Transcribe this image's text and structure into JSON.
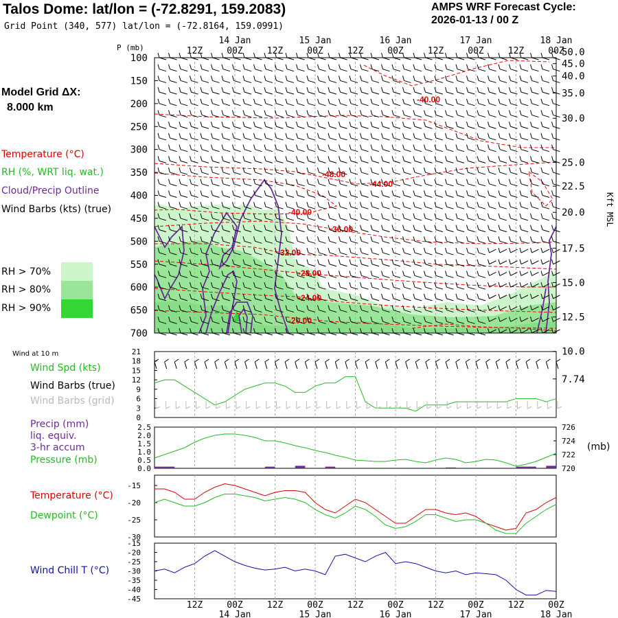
{
  "header": {
    "title": "Talos Dome:  lat/lon = (-72.8291, 159.2083)",
    "subtitle": "Grid Point (340, 577) lat/lon = (-72.8164, 159.0991)",
    "cycle_line1": "AMPS WRF Forecast Cycle:",
    "cycle_line2": "2026-01-13 / 00  Z",
    "grid_label1": "Model Grid ΔX:",
    "grid_label2": "8.000 km"
  },
  "time_axis": {
    "top_labels": [
      "12Z",
      "00Z",
      "12Z",
      "00Z",
      "12Z",
      "00Z",
      "12Z",
      "00Z",
      "12Z",
      "00Z"
    ],
    "date_labels": [
      "14 Jan",
      "15 Jan",
      "16 Jan",
      "17 Jan",
      "18 Jan"
    ]
  },
  "upper_panel": {
    "p_axis_label": "P (mb)",
    "kft_axis_label": "Kft MSL",
    "legend": {
      "temperature": "Temperature (°C)",
      "rh": "RH (%, WRT liq. wat.)",
      "cloud": "Cloud/Precip Outline",
      "wind": "Wind Barbs (kts) (true)",
      "rh70": "RH > 70%",
      "rh80": "RH > 80%",
      "rh90": "RH > 90%"
    },
    "colors": {
      "rh70": "#ccf5cc",
      "rh80": "#99e699",
      "rh90": "#33d633",
      "temp": "#ee0000",
      "cloud": "#6a2a9a"
    },
    "contour_labels": [
      "-40.00",
      "-48.00",
      "-44.00",
      "-40.00",
      "-36.00",
      "-32.00",
      "-28.00",
      "-24.00",
      "-20.00"
    ]
  },
  "wind_panel": {
    "title": "Wind at 10 m",
    "legend_spd": "Wind Spd (kts)",
    "legend_barbs_true": "Wind Barbs (true)",
    "legend_barbs_grid": "Wind Barbs (grid)"
  },
  "precip_panel": {
    "legend1": "Precip (mm)",
    "legend2": "liq. equiv.",
    "legend3": "3-hr accum",
    "legend4": "Pressure (mb)",
    "right_unit": "(mb)"
  },
  "temp_panel": {
    "legend_temp": "Temperature (°C)",
    "legend_dew": "Dewpoint (°C)"
  },
  "chill_panel": {
    "legend": "Wind Chill T (°C)"
  },
  "chart_data": [
    {
      "type": "heatmap",
      "name": "upper",
      "p_ticks": [
        100,
        150,
        200,
        250,
        300,
        350,
        400,
        450,
        500,
        550,
        600,
        650,
        700
      ],
      "kft_ticks": [
        "50.0",
        "45.0",
        "40.0",
        "35.0",
        "30.0",
        "25.0",
        "22.5",
        "20.0",
        "17.5",
        "15.0",
        "12.5",
        "10.0",
        "7.74"
      ],
      "kft_pressures": [
        87,
        113,
        140,
        177,
        232,
        328,
        380,
        437,
        515,
        590,
        665,
        740,
        800
      ]
    },
    {
      "type": "line",
      "name": "wind_speed",
      "x_hours": [
        0,
        3,
        6,
        9,
        12,
        15,
        18,
        21,
        24,
        27,
        30,
        33,
        36,
        39,
        42,
        45,
        48,
        51,
        54,
        57,
        60,
        63,
        66,
        69,
        72,
        75,
        78,
        81,
        84,
        87,
        90,
        93,
        96,
        99,
        102,
        105,
        108,
        111,
        114,
        117,
        120
      ],
      "y": [
        11,
        12,
        12,
        10,
        8,
        6,
        4,
        5,
        7,
        9,
        10,
        11,
        11,
        10,
        8,
        8,
        10,
        11,
        11,
        13,
        13,
        5,
        3,
        3,
        3,
        3,
        2,
        4,
        4,
        4,
        5,
        5,
        5,
        5,
        5,
        5,
        6,
        6,
        6,
        5,
        6
      ],
      "y_ticks": [
        21,
        18,
        15,
        12,
        9,
        6,
        3,
        0
      ],
      "ylim": [
        0,
        21
      ]
    },
    {
      "type": "line",
      "name": "pressure",
      "x_hours": [
        0,
        3,
        6,
        9,
        12,
        15,
        18,
        21,
        24,
        27,
        30,
        33,
        36,
        39,
        42,
        45,
        48,
        51,
        54,
        57,
        60,
        63,
        66,
        69,
        72,
        75,
        78,
        81,
        84,
        87,
        90,
        93,
        96,
        99,
        102,
        105,
        108,
        111,
        114,
        117,
        120
      ],
      "y": [
        721.5,
        722,
        722.5,
        723,
        723.8,
        724.4,
        724.8,
        725,
        725,
        724.8,
        724.5,
        724,
        724,
        723.7,
        723.3,
        723,
        722.6,
        722.3,
        721.9,
        721.6,
        721.2,
        721.1,
        721,
        721,
        721.2,
        721.3,
        721,
        720.8,
        721.2,
        721.5,
        721.3,
        720.8,
        721,
        721.3,
        721.2,
        720.8,
        720.3,
        720.6,
        721,
        721.6,
        722.2
      ],
      "y_ticks_right": [
        726,
        724,
        722,
        720
      ],
      "y_ticks_left": [
        "2.5",
        "2.0",
        "1.5",
        "1.0",
        "0.5",
        "0.0"
      ],
      "ylim": [
        720,
        726
      ]
    },
    {
      "type": "bar",
      "name": "precip",
      "x_hours": [
        0,
        3,
        33,
        42,
        51,
        87,
        108,
        111,
        117
      ],
      "values": [
        0.1,
        0.1,
        0.1,
        0.15,
        0.1,
        0.05,
        0.1,
        0.1,
        0.15
      ],
      "ylim": [
        0,
        2.5
      ]
    },
    {
      "type": "line",
      "name": "temperature_dewpoint",
      "x_hours": [
        0,
        3,
        6,
        9,
        12,
        15,
        18,
        21,
        24,
        27,
        30,
        33,
        36,
        39,
        42,
        45,
        48,
        51,
        54,
        57,
        60,
        63,
        66,
        69,
        72,
        75,
        78,
        81,
        84,
        87,
        90,
        93,
        96,
        99,
        102,
        105,
        108,
        111,
        114,
        117,
        120
      ],
      "series": [
        {
          "name": "Temperature",
          "values": [
            -16,
            -16,
            -17,
            -19,
            -19,
            -17,
            -15.5,
            -14.5,
            -15,
            -16,
            -17,
            -18,
            -17,
            -16.5,
            -16.5,
            -17,
            -20,
            -22,
            -23,
            -21,
            -19,
            -20,
            -22,
            -24,
            -26,
            -26,
            -24,
            -22,
            -22,
            -23,
            -23.5,
            -23,
            -24,
            -26,
            -27,
            -28,
            -27.5,
            -23,
            -22,
            -20,
            -18.5
          ]
        },
        {
          "name": "Dewpoint",
          "values": [
            -20,
            -19,
            -20,
            -21,
            -21,
            -20,
            -18.5,
            -17.5,
            -17.5,
            -18,
            -18.5,
            -19.5,
            -19,
            -18.5,
            -19,
            -20,
            -22,
            -23.5,
            -24.5,
            -23,
            -21,
            -22,
            -24,
            -26.5,
            -27.5,
            -27,
            -25.5,
            -23.5,
            -23.5,
            -24.5,
            -25.5,
            -25,
            -25,
            -26,
            -28,
            -29,
            -29,
            -26,
            -24,
            -22,
            -20.5
          ]
        }
      ],
      "y_ticks": [
        -15,
        -20,
        -25,
        -30
      ],
      "ylim": [
        -30,
        -12
      ]
    },
    {
      "type": "line",
      "name": "wind_chill",
      "x_hours": [
        0,
        3,
        6,
        9,
        12,
        15,
        18,
        21,
        24,
        27,
        30,
        33,
        36,
        39,
        42,
        45,
        48,
        51,
        54,
        57,
        60,
        63,
        66,
        69,
        72,
        75,
        78,
        81,
        84,
        87,
        90,
        93,
        96,
        99,
        102,
        105,
        108,
        111,
        114,
        117,
        120
      ],
      "y": [
        -30,
        -29,
        -31,
        -28,
        -26,
        -22,
        -19,
        -22,
        -25,
        -27,
        -28.5,
        -29.5,
        -29,
        -28,
        -30,
        -29,
        -30,
        -32,
        -22,
        -21,
        -23,
        -25,
        -22,
        -20,
        -26,
        -25,
        -26,
        -28,
        -30,
        -31,
        -30,
        -32,
        -31,
        -31.5,
        -32,
        -35,
        -40,
        -43,
        -43,
        -40.5,
        -41
      ],
      "y_ticks": [
        -15,
        -20,
        -25,
        -30,
        -35,
        -40,
        -45
      ],
      "ylim": [
        -45,
        -15
      ]
    }
  ]
}
